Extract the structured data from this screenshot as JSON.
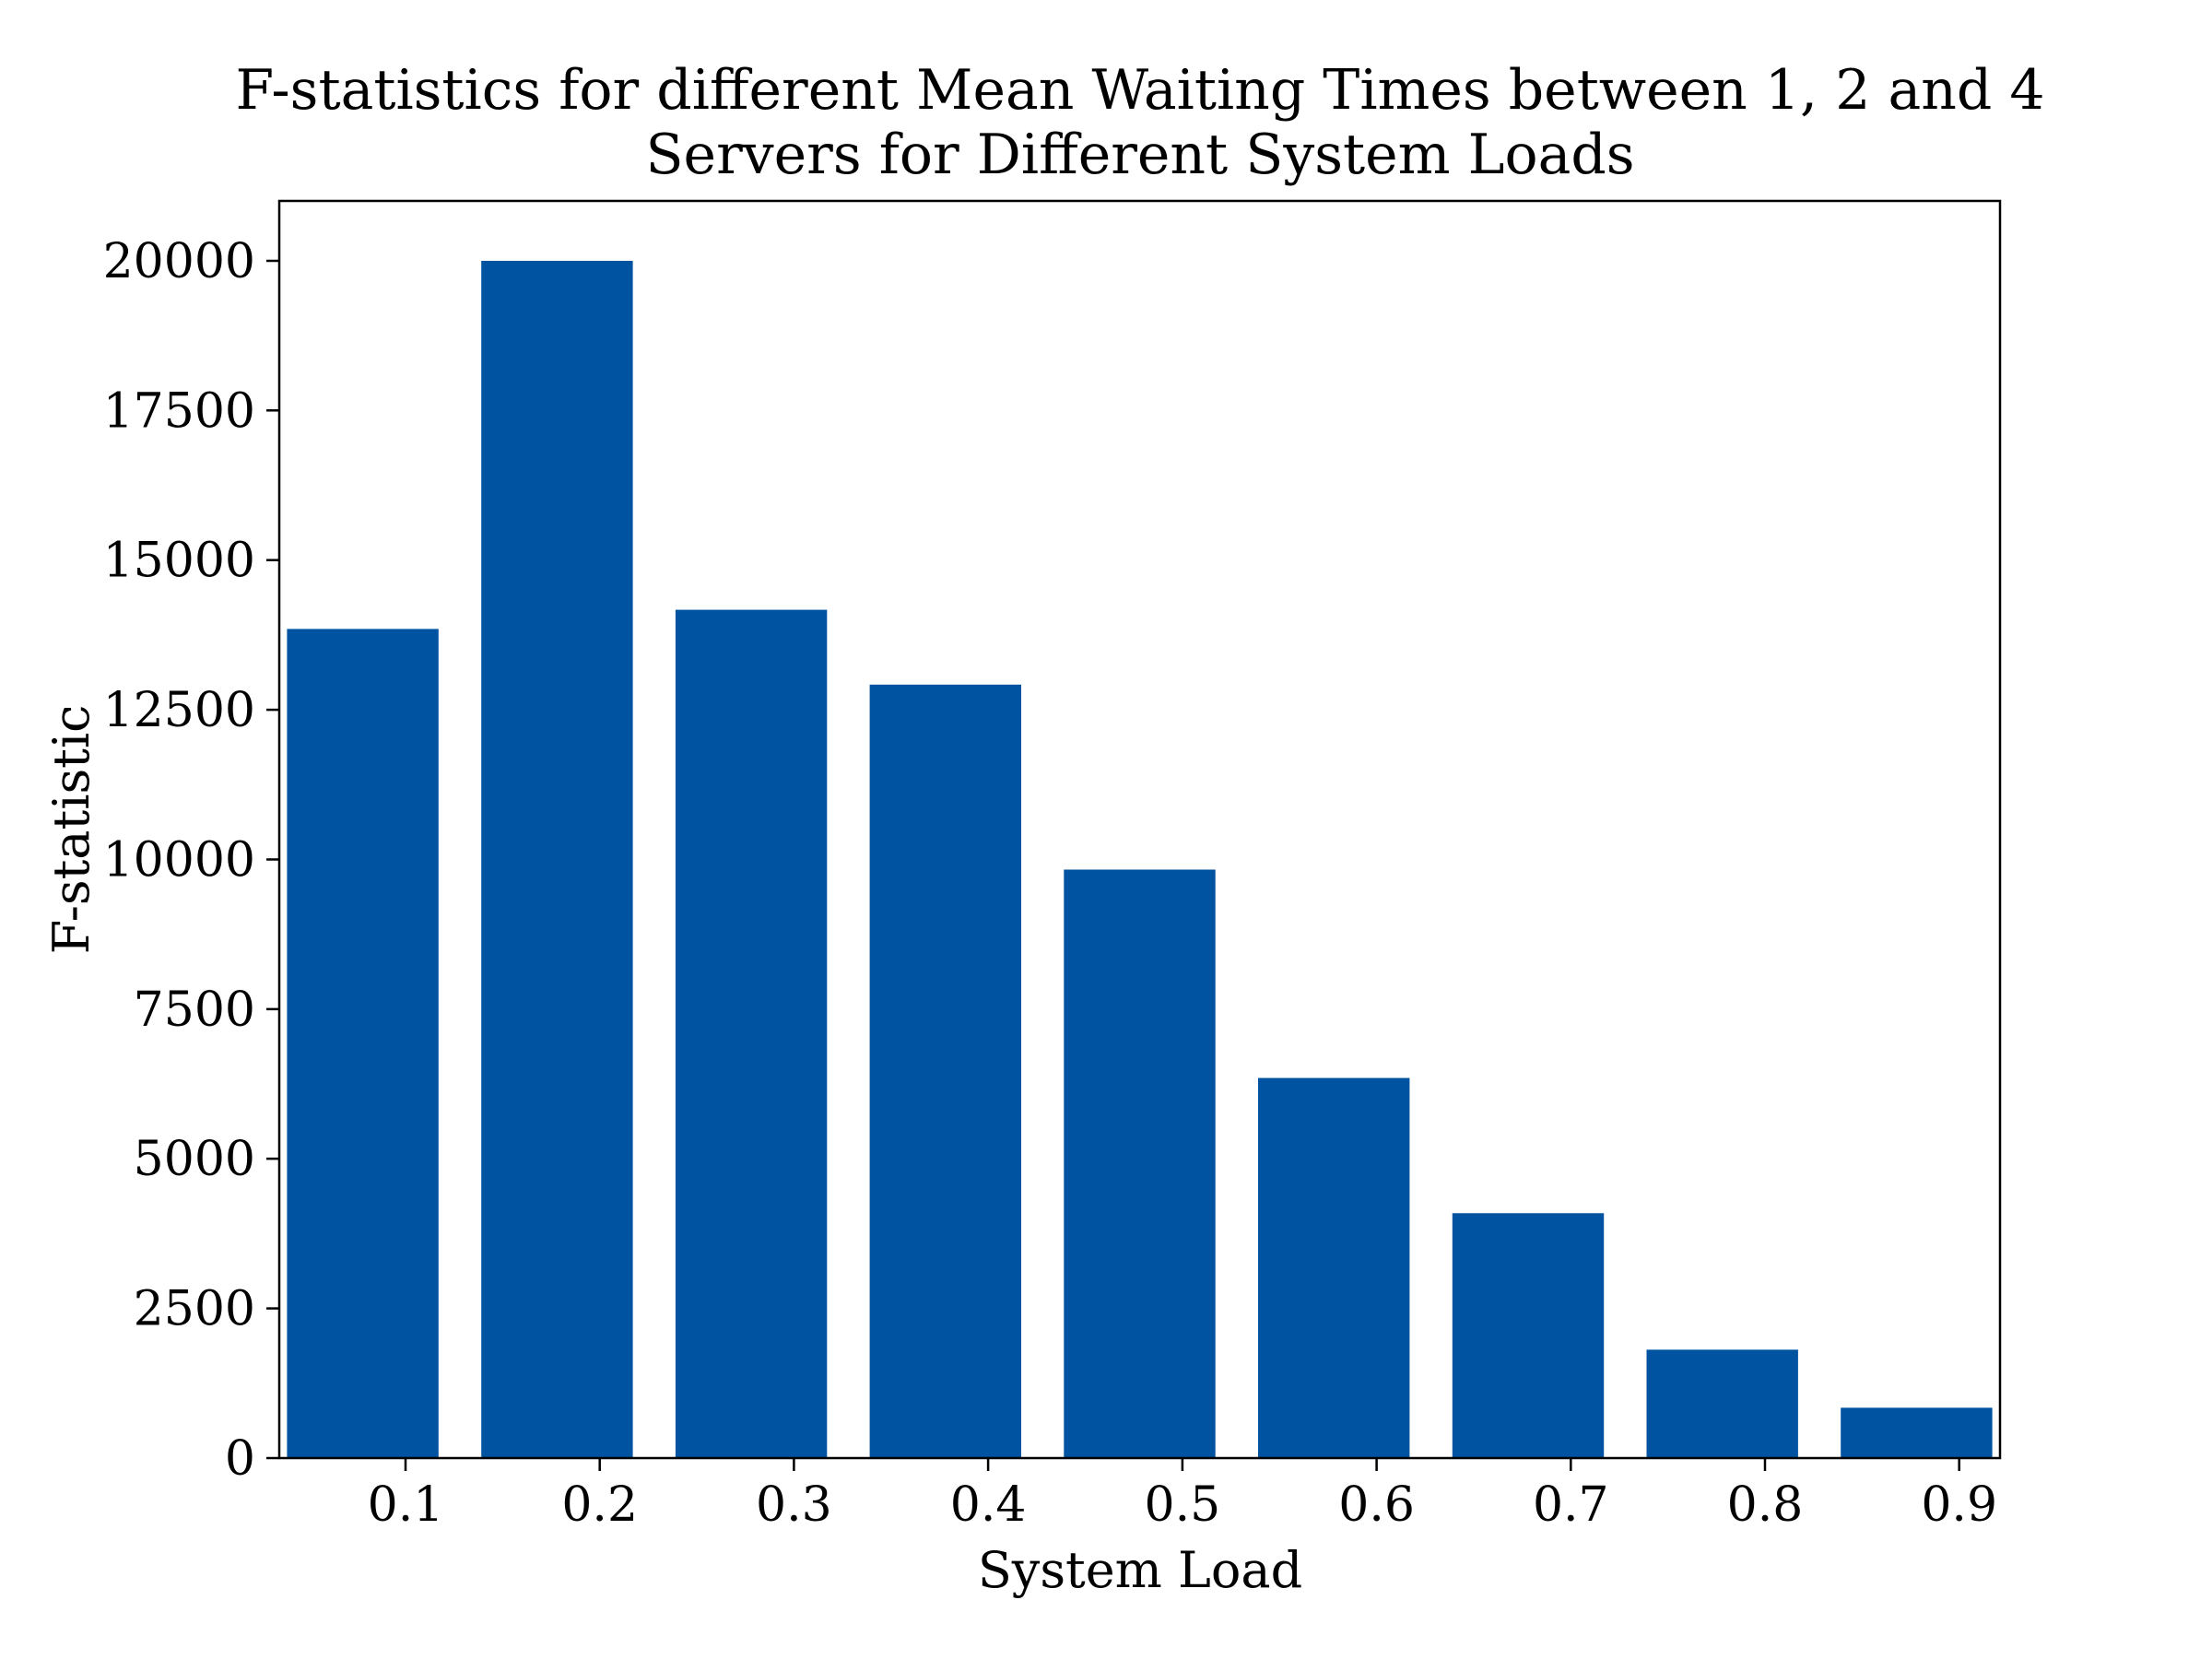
{
  "chart_data": {
    "type": "bar",
    "title": [
      "F-statistics for different Mean Waiting Times between 1, 2 and 4",
      "Servers for Different System Loads"
    ],
    "xlabel": "System Load",
    "ylabel": "F-statistic",
    "categories": [
      "0.1",
      "0.2",
      "0.3",
      "0.4",
      "0.5",
      "0.6",
      "0.7",
      "0.8",
      "0.9"
    ],
    "values": [
      13850,
      20000,
      14170,
      12920,
      9830,
      6350,
      4090,
      1810,
      840
    ],
    "ylim": [
      0,
      21000
    ],
    "yticks": [
      0,
      2500,
      5000,
      7500,
      10000,
      12500,
      15000,
      17500,
      20000
    ],
    "grid": false,
    "legend": "none",
    "bar_color": "#0053a1"
  }
}
